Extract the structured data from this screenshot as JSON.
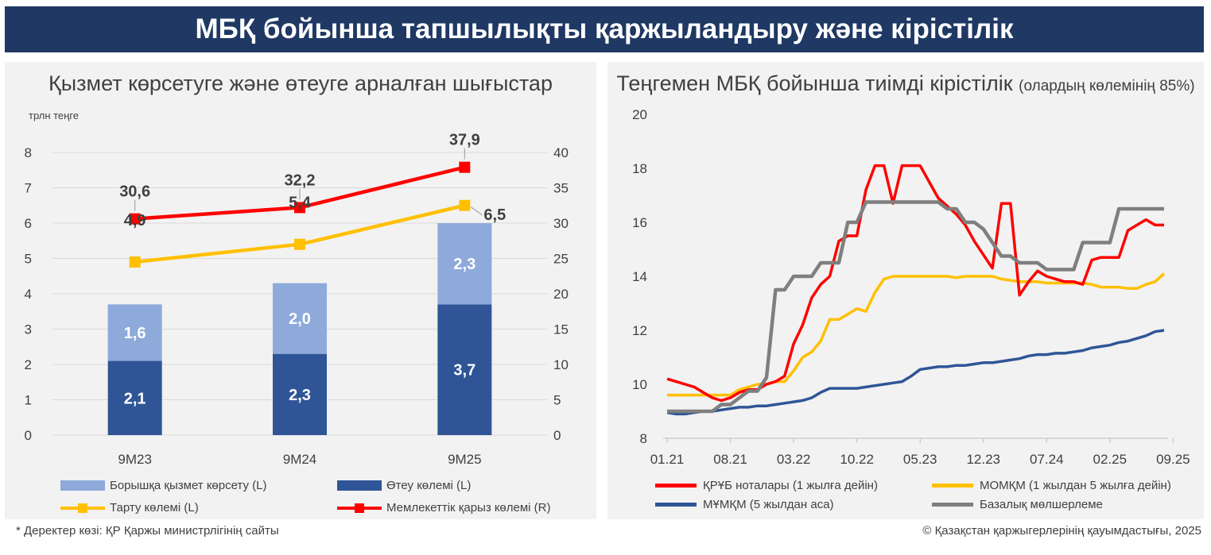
{
  "header": {
    "title": "МБҚ бойынша тапшылықты қаржыландыру және кірістілік"
  },
  "left_panel": {
    "title": "Қызмет көрсетуге және өтеуге арналған шығыстар",
    "unit_label": "трлн теңге"
  },
  "right_panel": {
    "title": "Теңгемен МБҚ бойынша тиімді кірістілік",
    "title_note": "(олардың көлемінің 85%)"
  },
  "footer": {
    "source": "* Деректер көзі: ҚР Қаржы министрлігінің сайты",
    "copyright": "© Қазақстан қаржыгерлерінің қауымдастығы, 2025"
  },
  "colors": {
    "banner": "#1f3864",
    "light_blue": "#8eaadb",
    "dark_blue": "#2f5597",
    "yellow": "#ffc000",
    "red": "#ff0000",
    "navy": "#2f5597",
    "grey": "#7f7f7f"
  },
  "legend_left": [
    {
      "label": "Борышқа қызмет көрсету (L)",
      "color": "#8eaadb",
      "kind": "box"
    },
    {
      "label": "Өтеу көлемі (L)",
      "color": "#2f5597",
      "kind": "box"
    },
    {
      "label": "Тарту көлемі (L)",
      "color": "#ffc000",
      "kind": "line-marker"
    },
    {
      "label": "Мемлекеттік қарыз көлемі (R)",
      "color": "#ff0000",
      "kind": "line-marker"
    }
  ],
  "legend_right": [
    {
      "label": "ҚРҰБ ноталары (1 жылға дейін)",
      "color": "#ff0000"
    },
    {
      "label": "МОМҚМ (1 жылдан 5 жылға дейін)",
      "color": "#ffc000"
    },
    {
      "label": "МҰМҚМ (5 жылдан аса)",
      "color": "#2f5597"
    },
    {
      "label": "Базалық  мөлшерлеме",
      "color": "#7f7f7f"
    }
  ],
  "chart_data": [
    {
      "type": "bar",
      "stacked": true,
      "title": "Қызмет көрсетуге және өтеуге арналған шығыстар",
      "ylabel": "трлн теңге",
      "categories": [
        "9M23",
        "9M24",
        "9M25"
      ],
      "ylim": [
        0,
        8
      ],
      "yticks": [
        0,
        1,
        2,
        3,
        4,
        5,
        6,
        7,
        8
      ],
      "y2lim": [
        0,
        40
      ],
      "y2ticks": [
        0,
        5,
        10,
        15,
        20,
        25,
        30,
        35,
        40
      ],
      "series": [
        {
          "name": "Өтеу көлемі (L)",
          "axis": "left",
          "kind": "bar",
          "values": [
            2.1,
            2.3,
            3.7
          ],
          "labels": [
            "2,1",
            "2,3",
            "3,7"
          ]
        },
        {
          "name": "Борышқа қызмет көрсету (L)",
          "axis": "left",
          "kind": "bar",
          "values": [
            1.6,
            2.0,
            2.3
          ],
          "labels": [
            "1,6",
            "2,0",
            "2,3"
          ]
        },
        {
          "name": "Тарту көлемі (L)",
          "axis": "left",
          "kind": "line",
          "values": [
            4.9,
            5.4,
            6.5
          ],
          "labels": [
            "4,9",
            "5,4",
            "6,5"
          ]
        },
        {
          "name": "Мемлекеттік қарыз көлемі (R)",
          "axis": "right",
          "kind": "line",
          "values": [
            30.6,
            32.2,
            37.9
          ],
          "labels": [
            "30,6",
            "32,2",
            "37,9"
          ]
        }
      ]
    },
    {
      "type": "line",
      "title": "Теңгемен МБҚ бойынша тиімді кірістілік",
      "x_start": "2021-01",
      "x_step": "month",
      "xticks": [
        "01.21",
        "08.21",
        "03.22",
        "10.22",
        "05.23",
        "12.23",
        "07.24",
        "02.25",
        "09.25"
      ],
      "ylim": [
        8,
        20
      ],
      "yticks": [
        8,
        10,
        12,
        14,
        16,
        18,
        20
      ],
      "series": [
        {
          "name": "ҚРҰБ ноталары (1 жылға дейін)",
          "values": [
            10.2,
            10.1,
            10.0,
            9.9,
            9.7,
            9.5,
            9.4,
            9.5,
            9.7,
            9.8,
            9.8,
            10.0,
            10.1,
            10.3,
            11.5,
            12.2,
            13.2,
            13.7,
            14.0,
            15.3,
            15.5,
            15.5,
            17.2,
            18.1,
            18.1,
            16.7,
            18.1,
            18.1,
            18.1,
            17.5,
            16.9,
            16.6,
            16.3,
            15.9,
            15.3,
            14.8,
            14.3,
            16.7,
            16.7,
            13.3,
            13.8,
            14.2,
            14.0,
            13.9,
            13.8,
            13.8,
            13.7,
            14.6,
            14.7,
            14.7,
            14.7,
            15.7,
            15.9,
            16.1,
            15.9,
            15.9
          ]
        },
        {
          "name": "МОМҚМ (1 жылдан 5 жылға дейін)",
          "values": [
            9.6,
            9.6,
            9.6,
            9.6,
            9.6,
            9.6,
            9.6,
            9.6,
            9.8,
            9.9,
            10.0,
            10.0,
            10.1,
            10.1,
            10.5,
            11.0,
            11.2,
            11.6,
            12.4,
            12.4,
            12.6,
            12.8,
            12.7,
            13.4,
            13.9,
            14.0,
            14.0,
            14.0,
            14.0,
            14.0,
            14.0,
            14.0,
            13.95,
            14.0,
            14.0,
            14.0,
            14.0,
            13.9,
            13.85,
            13.8,
            13.8,
            13.8,
            13.75,
            13.75,
            13.75,
            13.75,
            13.75,
            13.7,
            13.6,
            13.6,
            13.6,
            13.55,
            13.55,
            13.7,
            13.8,
            14.1
          ]
        },
        {
          "name": "МҰМҚМ (5 жылдан аса)",
          "values": [
            8.95,
            8.9,
            8.9,
            8.95,
            9.0,
            9.0,
            9.05,
            9.1,
            9.15,
            9.15,
            9.2,
            9.2,
            9.25,
            9.3,
            9.35,
            9.4,
            9.5,
            9.7,
            9.85,
            9.85,
            9.85,
            9.85,
            9.9,
            9.95,
            10.0,
            10.05,
            10.1,
            10.3,
            10.55,
            10.6,
            10.65,
            10.65,
            10.7,
            10.7,
            10.75,
            10.8,
            10.8,
            10.85,
            10.9,
            10.95,
            11.05,
            11.1,
            11.1,
            11.15,
            11.15,
            11.2,
            11.25,
            11.35,
            11.4,
            11.45,
            11.55,
            11.6,
            11.7,
            11.8,
            11.95,
            12.0
          ]
        },
        {
          "name": "Базалық  мөлшерлеме",
          "values": [
            9.0,
            9.0,
            9.0,
            9.0,
            9.0,
            9.0,
            9.25,
            9.25,
            9.5,
            9.75,
            9.75,
            10.25,
            13.5,
            13.5,
            14.0,
            14.0,
            14.0,
            14.5,
            14.5,
            14.5,
            16.0,
            16.0,
            16.75,
            16.75,
            16.75,
            16.75,
            16.75,
            16.75,
            16.75,
            16.75,
            16.75,
            16.5,
            16.5,
            16.0,
            16.0,
            15.75,
            15.25,
            14.75,
            14.75,
            14.5,
            14.5,
            14.5,
            14.25,
            14.25,
            14.25,
            14.25,
            15.25,
            15.25,
            15.25,
            15.25,
            16.5,
            16.5,
            16.5,
            16.5,
            16.5,
            16.5
          ]
        }
      ]
    }
  ]
}
